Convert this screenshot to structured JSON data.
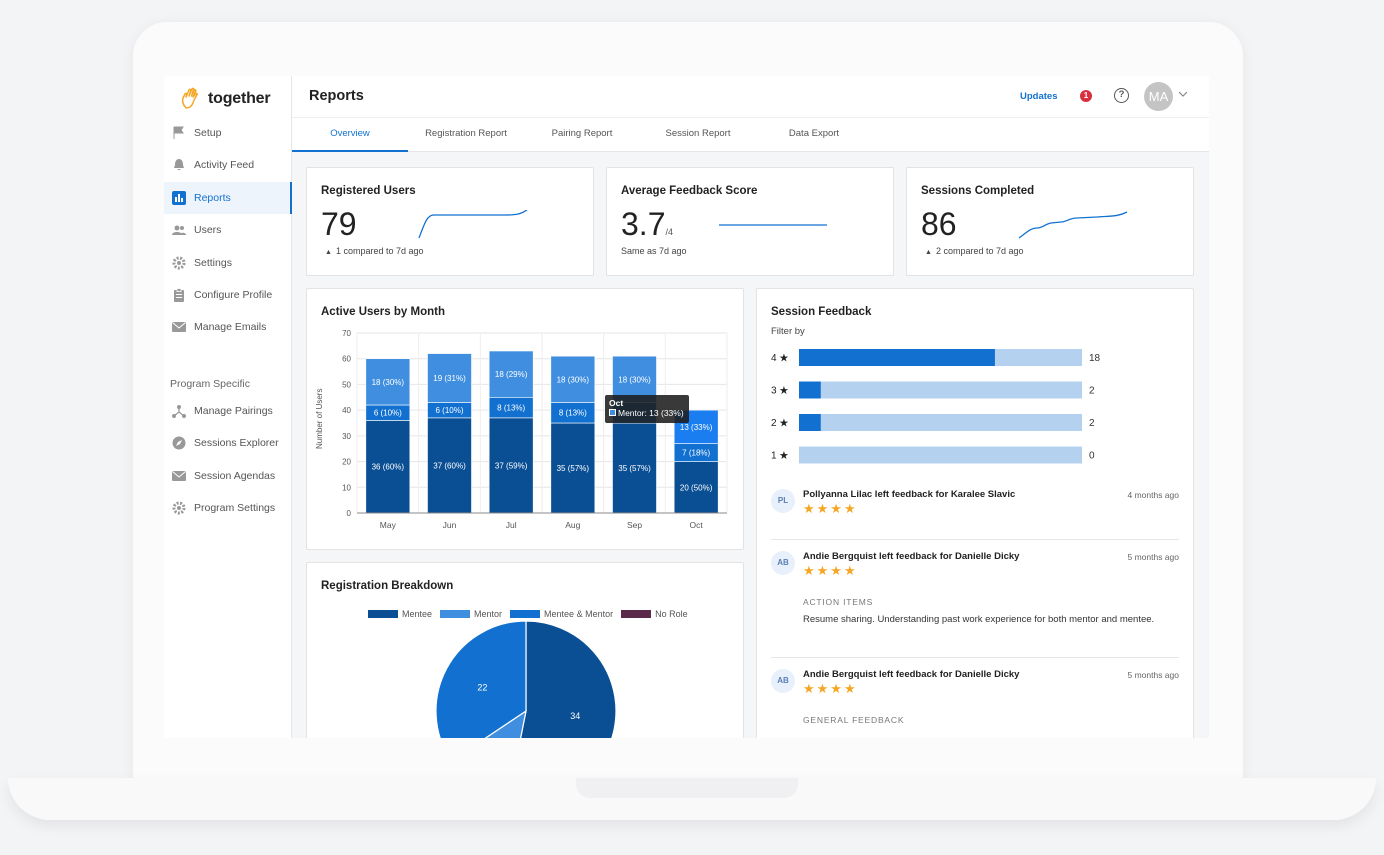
{
  "app": {
    "logo_text": "together"
  },
  "sidebar": {
    "items": [
      {
        "label": "Setup",
        "icon": "flag-icon"
      },
      {
        "label": "Activity Feed",
        "icon": "bell-icon"
      },
      {
        "label": "Reports",
        "icon": "bar-chart-icon"
      },
      {
        "label": "Users",
        "icon": "users-icon"
      },
      {
        "label": "Settings",
        "icon": "gear-icon"
      },
      {
        "label": "Configure Profile",
        "icon": "clipboard-icon"
      },
      {
        "label": "Manage Emails",
        "icon": "mail-icon"
      }
    ],
    "section_title": "Program Specific",
    "program_items": [
      {
        "label": "Manage Pairings",
        "icon": "pairing-icon"
      },
      {
        "label": "Sessions Explorer",
        "icon": "compass-icon"
      },
      {
        "label": "Session Agendas",
        "icon": "mail-icon"
      },
      {
        "label": "Program Settings",
        "icon": "gear-icon"
      }
    ]
  },
  "header": {
    "title": "Reports",
    "updates_label": "Updates",
    "notification_count": "1",
    "help_glyph": "?",
    "avatar_initials": "MA"
  },
  "tabs": [
    {
      "label": "Overview"
    },
    {
      "label": "Registration Report"
    },
    {
      "label": "Pairing Report"
    },
    {
      "label": "Session Report"
    },
    {
      "label": "Data Export"
    }
  ],
  "stats": [
    {
      "title": "Registered Users",
      "value": "79",
      "unit": "",
      "note": "1 compared to 7d ago"
    },
    {
      "title": "Average Feedback Score",
      "value": "3.7",
      "unit": "/4",
      "note": "Same as 7d ago"
    },
    {
      "title": "Sessions Completed",
      "value": "86",
      "unit": "",
      "note": "2 compared to 7d ago"
    }
  ],
  "active_users": {
    "title": "Active Users by Month",
    "ylabel": "Number of Users",
    "tooltip": {
      "title": "Oct",
      "text": "Mentor: 13 (33%)"
    }
  },
  "registration": {
    "title": "Registration Breakdown",
    "legend": [
      "Mentee",
      "Mentor",
      "Mentee & Mentor",
      "No Role"
    ],
    "pie_labels": [
      "34",
      "22"
    ]
  },
  "session_feedback": {
    "title": "Session Feedback",
    "filter_label": "Filter by",
    "rows": [
      {
        "rating": "4",
        "value": 18
      },
      {
        "rating": "3",
        "value": 2
      },
      {
        "rating": "2",
        "value": 2
      },
      {
        "rating": "1",
        "value": 0
      }
    ],
    "max": 26,
    "feed": [
      {
        "initials": "PL",
        "text": "Pollyanna Lilac left feedback for Karalee Slavic",
        "time": "4 months ago",
        "stars": "★★★★"
      },
      {
        "initials": "AB",
        "text": "Andie Bergquist left feedback for Danielle Dicky",
        "time": "5 months ago",
        "stars": "★★★★",
        "section_label": "ACTION ITEMS",
        "body": "Resume sharing. Understanding past work experience for both mentor and mentee."
      },
      {
        "initials": "AB",
        "text": "Andie Bergquist left feedback for Danielle Dicky",
        "time": "5 months ago",
        "stars": "★★★★",
        "section_label": "GENERAL FEEDBACK"
      }
    ]
  },
  "colors": {
    "accent": "#1271d0",
    "mentee": "#0a4f94",
    "mentor": "#3f8ee0",
    "mentee_mentor": "#1271d0",
    "no_role": "#5b2a4a",
    "bar_light": "#b4d1ef",
    "star": "#f5a623"
  },
  "chart_data": [
    {
      "type": "bar",
      "stacked": true,
      "title": "Active Users by Month",
      "ylabel": "Number of Users",
      "categories": [
        "May",
        "Jun",
        "Jul",
        "Aug",
        "Sep",
        "Oct"
      ],
      "ylim": [
        0,
        70
      ],
      "yticks": [
        0,
        10,
        20,
        30,
        40,
        50,
        60,
        70
      ],
      "series": [
        {
          "name": "Mentee",
          "values": [
            36,
            37,
            37,
            35,
            35,
            20
          ],
          "labels": [
            "36 (60%)",
            "37 (60%)",
            "37 (59%)",
            "35 (57%)",
            "35 (57%)",
            "20 (50%)"
          ]
        },
        {
          "name": "Mentee & Mentor",
          "values": [
            6,
            6,
            8,
            8,
            8,
            7
          ],
          "labels": [
            "6 (10%)",
            "6 (10%)",
            "8 (13%)",
            "8 (13%)",
            "",
            "7 (18%)"
          ]
        },
        {
          "name": "Mentor",
          "values": [
            18,
            19,
            18,
            18,
            18,
            13
          ],
          "labels": [
            "18 (30%)",
            "19 (31%)",
            "18 (29%)",
            "18 (30%)",
            "18 (30%)",
            "13 (33%)"
          ]
        }
      ]
    },
    {
      "type": "pie",
      "title": "Registration Breakdown",
      "categories": [
        "Mentee",
        "Mentor",
        "Mentee & Mentor",
        "No Role"
      ],
      "values": [
        34,
        8,
        22,
        0
      ],
      "labels": [
        "34",
        "",
        "22",
        ""
      ]
    },
    {
      "type": "bar",
      "orientation": "horizontal",
      "title": "Session Feedback",
      "categories": [
        "4",
        "3",
        "2",
        "1"
      ],
      "values": [
        18,
        2,
        2,
        0
      ]
    }
  ]
}
